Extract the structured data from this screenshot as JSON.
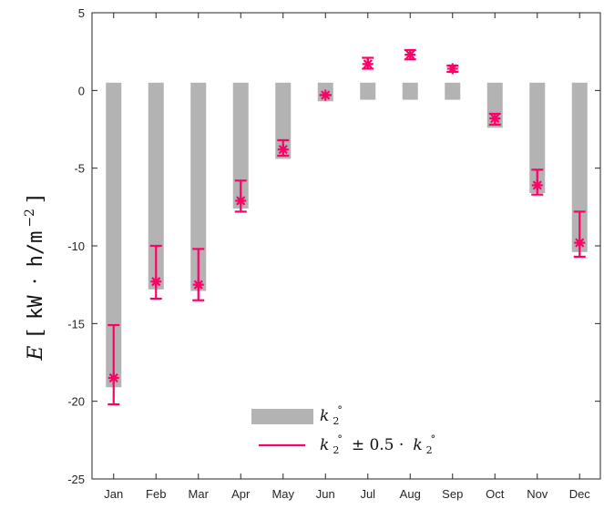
{
  "chart_data": {
    "type": "bar",
    "categories": [
      "Jan",
      "Feb",
      "Mar",
      "Apr",
      "May",
      "Jun",
      "Jul",
      "Aug",
      "Sep",
      "Oct",
      "Nov",
      "Dec"
    ],
    "bar_bottom": 0.5,
    "series": [
      {
        "name": "k2°",
        "kind": "bar",
        "values": [
          -19.1,
          -12.8,
          -12.9,
          -7.6,
          -4.4,
          -0.7,
          -0.6,
          -0.6,
          -0.6,
          -2.4,
          -6.6,
          -10.4
        ]
      },
      {
        "name": "k2° ± 0.5 · k2°",
        "kind": "errorbar",
        "center": [
          -18.5,
          -12.3,
          -12.5,
          -7.1,
          -3.8,
          -0.3,
          1.7,
          2.3,
          1.4,
          -1.8,
          -6.1,
          -9.8
        ],
        "lower": [
          -20.2,
          -13.4,
          -13.5,
          -7.8,
          -4.2,
          -0.3,
          1.4,
          2.0,
          1.2,
          -2.2,
          -6.7,
          -10.7
        ],
        "upper": [
          -15.1,
          -10.0,
          -10.2,
          -5.8,
          -3.2,
          -0.3,
          2.1,
          2.6,
          1.6,
          -1.5,
          -5.1,
          -7.8
        ]
      }
    ],
    "ylim": [
      -25,
      5
    ],
    "yticks": [
      5,
      0,
      -5,
      -10,
      -15,
      -20,
      -25
    ],
    "ylabel": {
      "italic": "E",
      "open": "[",
      "unit_a": "kW",
      "dot": "·",
      "unit_b": "h/m",
      "exp": "−2",
      "close": "]"
    },
    "legend": {
      "position": "bottom-center",
      "bar_label": {
        "k": "k",
        "sub": "2",
        "sup": "°"
      },
      "err_label": {
        "k": "k",
        "sub": "2",
        "sup": "°",
        "mid": "± 0.5 ·",
        "k2": "k",
        "sub2": "2",
        "sup2": "°"
      }
    },
    "grid": false,
    "colors": {
      "bar": "#b3b3b3",
      "error": "#ff0066",
      "axis": "#262626"
    }
  }
}
